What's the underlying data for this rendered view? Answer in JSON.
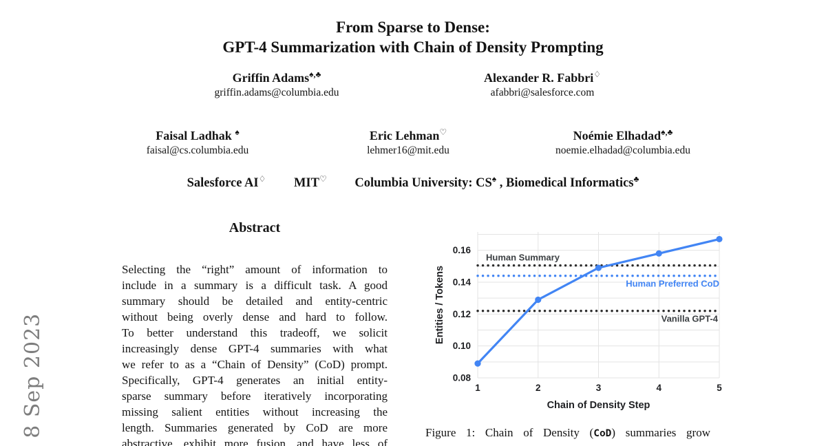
{
  "watermark": {
    "text": "] 8 Sep 2023",
    "color": "#7d7d7d"
  },
  "header": {
    "title_line1": "From Sparse to Dense:",
    "title_line2": "GPT-4 Summarization with Chain of Density Prompting",
    "authors_row1": [
      {
        "name": "Griffin Adams",
        "marker": "♠,♣",
        "email": "griffin.adams@columbia.edu"
      },
      {
        "name": "Alexander R. Fabbri",
        "marker": "♢",
        "email": "afabbri@salesforce.com"
      }
    ],
    "authors_row2": [
      {
        "name": "Faisal Ladhak ",
        "marker": "♠",
        "email": "faisal@cs.columbia.edu"
      },
      {
        "name": "Eric Lehman",
        "marker": "♡",
        "email": "lehmer16@mit.edu"
      },
      {
        "name": "Noémie Elhadad",
        "marker": "♠,♣",
        "email": "noemie.elhadad@columbia.edu"
      }
    ],
    "affiliations": [
      {
        "text": "Salesforce AI",
        "sup": "♢"
      },
      {
        "text": "MIT",
        "sup": "♡"
      },
      {
        "text": "Columbia University: CS",
        "sup": "♠"
      },
      {
        "text": ", Biomedical Informatics",
        "sup": "♣"
      }
    ]
  },
  "abstract": {
    "heading": "Abstract",
    "lines": [
      "Selecting the “right” amount of information to",
      "include in a summary is a difficult task. A good",
      "summary should be detailed and entity-centric",
      "without being overly dense and hard to follow.",
      "To better understand this tradeoff, we solicit",
      "increasingly dense GPT-4 summaries with what",
      "we refer to as a “Chain of Density” (CoD) prompt.",
      "Specifically, GPT-4 generates an initial entity-",
      "sparse summary before iteratively incorporating",
      "missing salient entities without increasing the",
      "length. Summaries generated by CoD are more",
      "abstractive, exhibit more fusion, and have less of"
    ]
  },
  "figure": {
    "caption_prefix": "Figure 1: Chain of Density (",
    "caption_code": "CoD",
    "caption_suffix": ") summaries grow"
  },
  "chart_data": {
    "type": "line",
    "title": "",
    "xlabel": "Chain of Density Step",
    "ylabel": "Entities / Tokens",
    "x": [
      1,
      2,
      3,
      4,
      5
    ],
    "series": [
      {
        "name": "CoD summaries",
        "values": [
          0.089,
          0.129,
          0.149,
          0.158,
          0.167
        ],
        "color": "#4285f4"
      }
    ],
    "reference_lines": [
      {
        "label": "Human Summary",
        "value": 0.1505,
        "line_color": "#2b2b2b",
        "label_color": "#3c4043",
        "label_align": "left",
        "label_side": "above"
      },
      {
        "label": "Human Preferred CoD",
        "value": 0.144,
        "line_color": "#4285f4",
        "label_color": "#4285f4",
        "label_align": "right",
        "label_side": "below"
      },
      {
        "label": "Vanilla GPT-4",
        "value": 0.122,
        "line_color": "#2b2b2b",
        "label_color": "#3c4043",
        "label_side": "below",
        "label_align": "right"
      }
    ],
    "ylim": [
      0.08,
      0.1715
    ],
    "yticks": [
      0.08,
      0.1,
      0.12,
      0.14,
      0.16
    ],
    "xticks": [
      1,
      2,
      3,
      4,
      5
    ],
    "minor_grid_step": 0.01,
    "grid": true,
    "grid_color": "#e3e3e3",
    "tick_color": "#202124",
    "legend_position": "none"
  }
}
